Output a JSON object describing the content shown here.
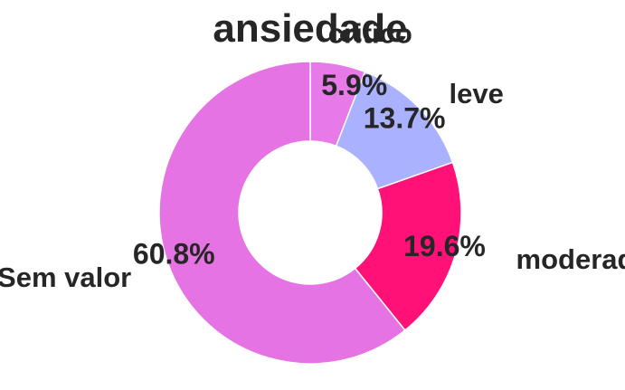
{
  "chart_data": {
    "type": "pie",
    "variant": "donut",
    "title": "ansiedade",
    "slices": [
      {
        "label": "critico",
        "value": 5.9,
        "pct_label": "5.9%",
        "color": "#e879e8"
      },
      {
        "label": "leve",
        "value": 13.7,
        "pct_label": "13.7%",
        "color": "#aab2ff"
      },
      {
        "label": "moderado",
        "value": 19.6,
        "pct_label": "19.6%",
        "color": "#ff1177"
      },
      {
        "label": "Sem valor",
        "value": 60.8,
        "pct_label": "60.8%",
        "color": "#e673e3"
      }
    ],
    "start_angle": "top",
    "direction": "clockwise"
  }
}
